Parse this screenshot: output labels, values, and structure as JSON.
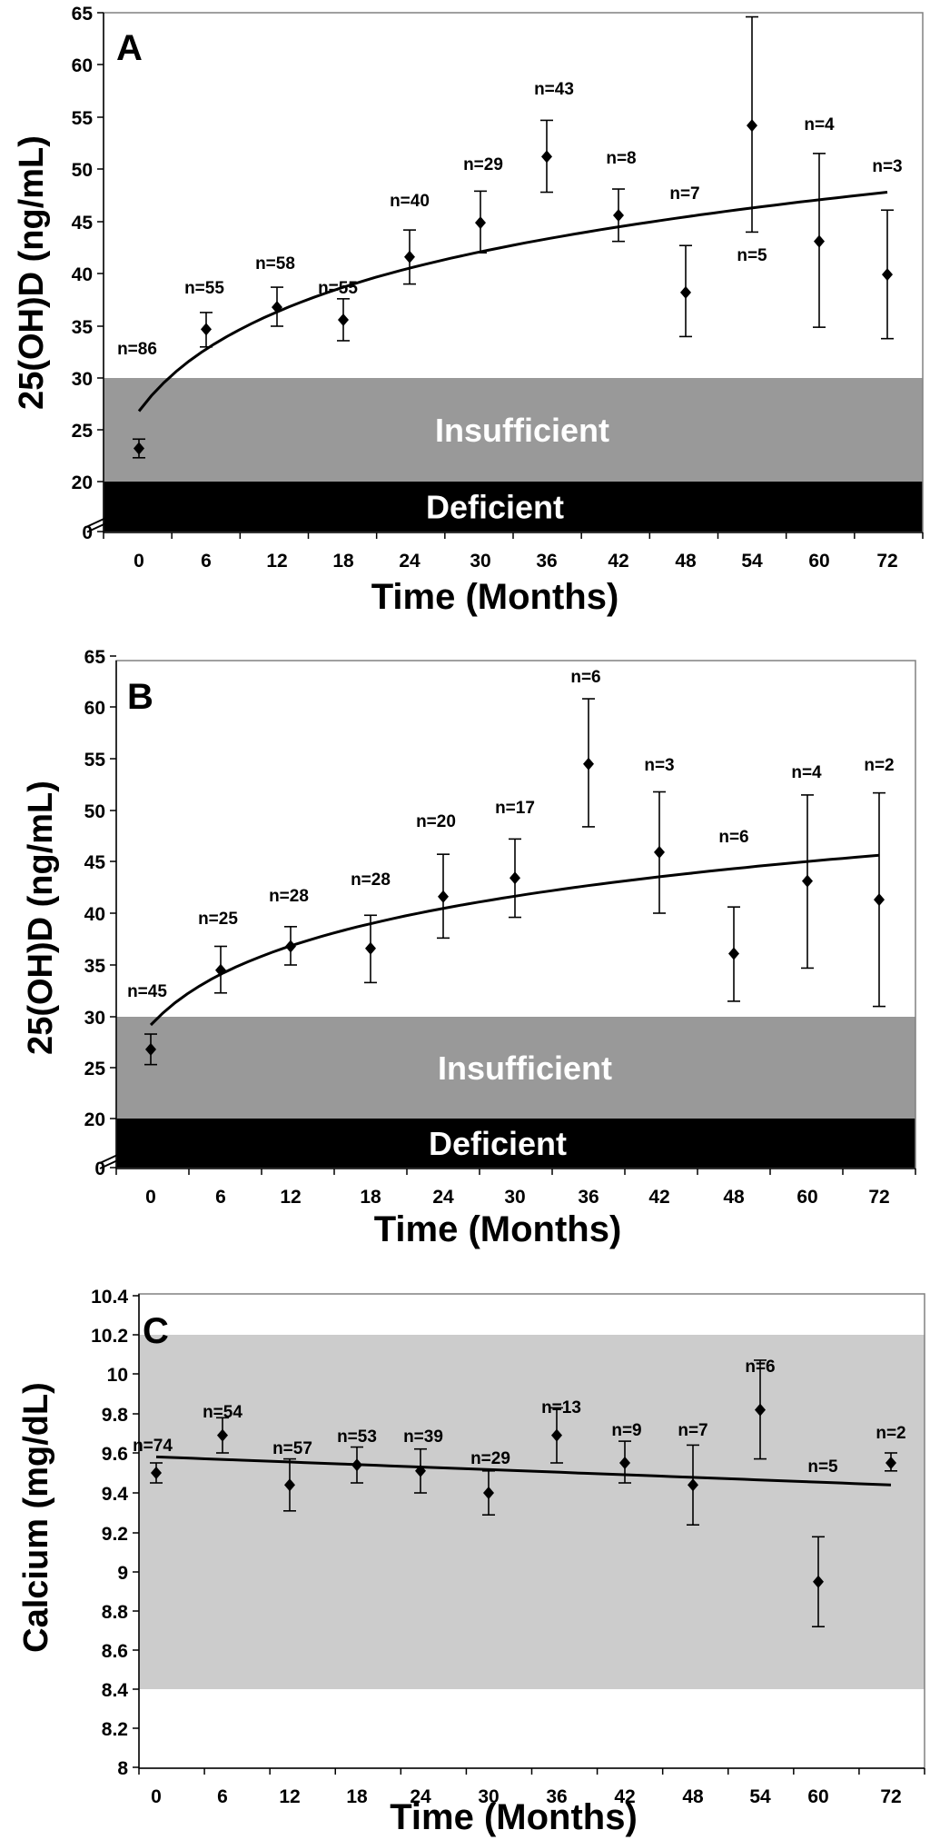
{
  "chart_data": [
    {
      "type": "scatter",
      "panel_label": "A",
      "ylabel": "25(OH)D (ng/mL)",
      "xlabel": "Time (Months)",
      "categories": [
        "0",
        "6",
        "12",
        "18",
        "24",
        "30",
        "36",
        "42",
        "48",
        "54",
        "60",
        "72"
      ],
      "yticks": [
        "0",
        "20",
        "25",
        "30",
        "35",
        "40",
        "45",
        "50",
        "55",
        "60",
        "65"
      ],
      "means": [
        23.2,
        34.7,
        36.8,
        35.6,
        41.6,
        44.9,
        51.2,
        45.6,
        38.2,
        54.2,
        43.1,
        39.9
      ],
      "err_low": [
        22.3,
        33.0,
        35.0,
        33.6,
        39.0,
        42.0,
        47.8,
        43.1,
        34.0,
        44.0,
        34.9,
        33.8
      ],
      "err_high": [
        24.1,
        36.3,
        38.7,
        37.6,
        44.2,
        47.9,
        54.7,
        48.1,
        42.7,
        64.6,
        51.5,
        46.1
      ],
      "n_labels": [
        "n=86",
        "n=55",
        "n=58",
        "n=55",
        "n=40",
        "n=29",
        "n=43",
        "n=8",
        "n=7",
        "n=5",
        "n=4",
        "n=3"
      ],
      "trend": [
        26.8,
        47.8
      ],
      "bands": [
        {
          "label": "Insufficient",
          "from": 20,
          "to": 30
        },
        {
          "label": "Deficient",
          "from": 0,
          "to": 20
        }
      ],
      "axis_break": true,
      "ylim": [
        0,
        65
      ]
    },
    {
      "type": "scatter",
      "panel_label": "B",
      "ylabel": "25(OH)D (ng/mL)",
      "xlabel": "Time (Months)",
      "categories": [
        "0",
        "6",
        "12",
        "18",
        "24",
        "30",
        "36",
        "42",
        "48",
        "60",
        "72"
      ],
      "yticks": [
        "0",
        "20",
        "25",
        "30",
        "35",
        "40",
        "45",
        "50",
        "55",
        "60",
        "65"
      ],
      "means": [
        26.8,
        34.5,
        36.8,
        36.6,
        41.6,
        43.4,
        54.5,
        45.9,
        36.1,
        43.1,
        41.3
      ],
      "err_low": [
        25.3,
        32.3,
        35.0,
        33.3,
        37.6,
        39.6,
        48.4,
        40.0,
        31.5,
        34.7,
        31.0
      ],
      "err_high": [
        28.3,
        36.8,
        38.7,
        39.8,
        45.7,
        47.2,
        60.8,
        51.8,
        40.6,
        51.5,
        51.7
      ],
      "n_labels": [
        "n=45",
        "n=25",
        "n=28",
        "n=28",
        "n=20",
        "n=17",
        "n=6",
        "n=3",
        "n=6",
        "n=4",
        "n=2"
      ],
      "trend": [
        29.2,
        45.6
      ],
      "bands": [
        {
          "label": "Insufficient",
          "from": 20,
          "to": 30
        },
        {
          "label": "Deficient",
          "from": 0,
          "to": 20
        }
      ],
      "axis_break": true,
      "ylim": [
        0,
        65
      ]
    },
    {
      "type": "scatter",
      "panel_label": "C",
      "ylabel": "Calcium (mg/dL)",
      "xlabel": "Time (Months)",
      "categories": [
        "0",
        "6",
        "12",
        "18",
        "24",
        "30",
        "36",
        "42",
        "48",
        "54",
        "60",
        "72"
      ],
      "yticks": [
        "8",
        "8.2",
        "8.4",
        "8.6",
        "8.8",
        "9",
        "9.2",
        "9.4",
        "9.6",
        "9.8",
        "10",
        "10.2",
        "10.4"
      ],
      "means": [
        9.5,
        9.69,
        9.44,
        9.54,
        9.51,
        9.4,
        9.69,
        9.55,
        9.44,
        9.82,
        8.95,
        9.55
      ],
      "err_low": [
        9.45,
        9.6,
        9.31,
        9.45,
        9.4,
        9.29,
        9.55,
        9.45,
        9.24,
        9.57,
        8.72,
        9.51
      ],
      "err_high": [
        9.55,
        9.78,
        9.57,
        9.63,
        9.62,
        9.51,
        9.83,
        9.66,
        9.64,
        10.07,
        9.18,
        9.6
      ],
      "n_labels": [
        "n=74",
        "n=54",
        "n=57",
        "n=53",
        "n=39",
        "n=29",
        "n=13",
        "n=9",
        "n=7",
        "n=6",
        "n=5",
        "n=2"
      ],
      "trend": [
        9.58,
        9.44
      ],
      "bands": [
        {
          "label": "",
          "from": 8.4,
          "to": 10.2
        }
      ],
      "axis_break": false,
      "ylim": [
        8,
        10.4
      ]
    }
  ]
}
